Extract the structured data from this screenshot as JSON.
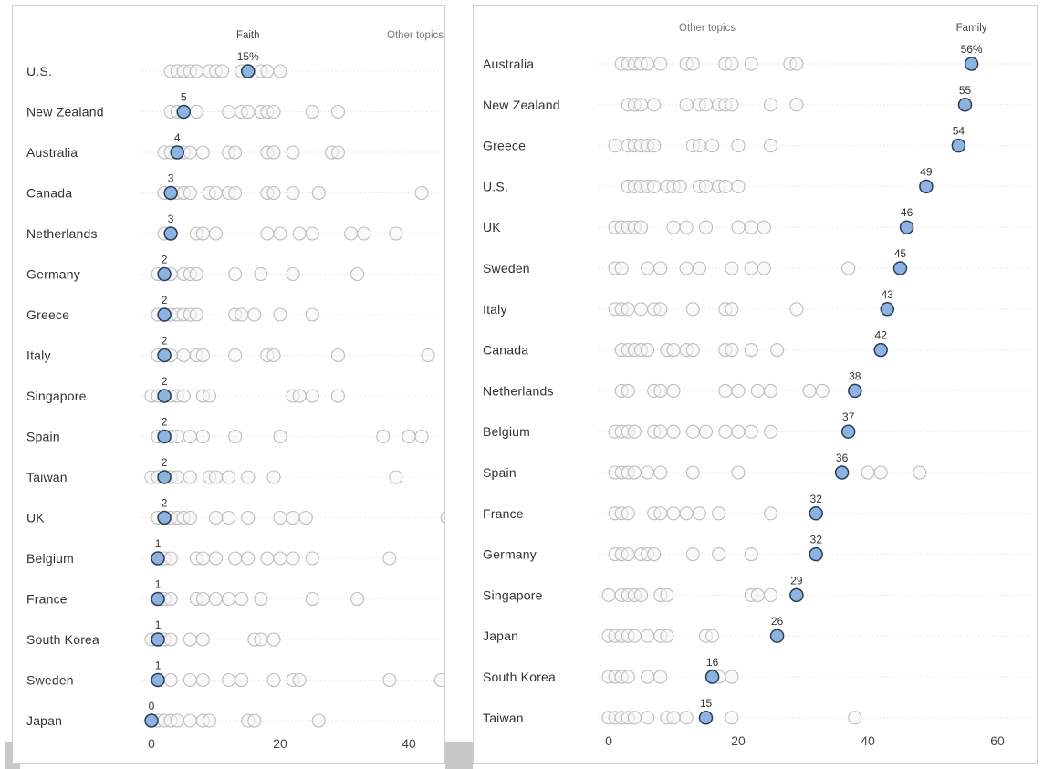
{
  "colors": {
    "highlight_fill": "#8db3e2",
    "highlight_stroke": "#2c3e55",
    "other_stroke": "#bdbdbd"
  },
  "chart_data": [
    {
      "type": "scatter",
      "title": "",
      "xlabel": "",
      "ylabel": "",
      "xlim": [
        0,
        45
      ],
      "x_ticks": [
        "0",
        "20",
        "40"
      ],
      "grid": false,
      "highlight_series": "Faith",
      "highlight_header": "Faith",
      "other_header": "Other topics",
      "rows": [
        {
          "country": "U.S.",
          "highlight": 15,
          "label": "15%",
          "others": [
            3,
            4,
            5,
            6,
            7,
            9,
            10,
            11,
            14,
            17,
            18,
            20
          ]
        },
        {
          "country": "New Zealand",
          "highlight": 5,
          "label": "5",
          "others": [
            3,
            4,
            7,
            12,
            14,
            15,
            17,
            18,
            19,
            25,
            29
          ]
        },
        {
          "country": "Australia",
          "highlight": 4,
          "label": "4",
          "others": [
            2,
            3,
            5,
            6,
            8,
            12,
            13,
            18,
            19,
            22,
            28,
            29
          ]
        },
        {
          "country": "Canada",
          "highlight": 3,
          "label": "3",
          "others": [
            2,
            4,
            5,
            6,
            9,
            10,
            12,
            13,
            18,
            19,
            22,
            26,
            42
          ]
        },
        {
          "country": "Netherlands",
          "highlight": 3,
          "label": "3",
          "others": [
            2,
            7,
            8,
            10,
            18,
            20,
            23,
            25,
            31,
            33,
            38
          ]
        },
        {
          "country": "Germany",
          "highlight": 2,
          "label": "2",
          "others": [
            1,
            3,
            5,
            6,
            7,
            13,
            17,
            22,
            32
          ]
        },
        {
          "country": "Greece",
          "highlight": 2,
          "label": "2",
          "others": [
            1,
            3,
            4,
            5,
            6,
            7,
            13,
            14,
            16,
            20,
            25
          ]
        },
        {
          "country": "Italy",
          "highlight": 2,
          "label": "2",
          "others": [
            1,
            3,
            5,
            7,
            8,
            13,
            18,
            19,
            29,
            43
          ]
        },
        {
          "country": "Singapore",
          "highlight": 2,
          "label": "2",
          "others": [
            0,
            1,
            3,
            4,
            5,
            8,
            9,
            22,
            23,
            25,
            29
          ]
        },
        {
          "country": "Spain",
          "highlight": 2,
          "label": "2",
          "others": [
            1,
            3,
            4,
            6,
            8,
            13,
            20,
            36,
            40,
            42
          ]
        },
        {
          "country": "Taiwan",
          "highlight": 2,
          "label": "2",
          "others": [
            0,
            1,
            3,
            4,
            6,
            9,
            10,
            12,
            15,
            19,
            38
          ]
        },
        {
          "country": "UK",
          "highlight": 2,
          "label": "2",
          "others": [
            1,
            3,
            4,
            5,
            6,
            10,
            12,
            15,
            20,
            22,
            24,
            46
          ]
        },
        {
          "country": "Belgium",
          "highlight": 1,
          "label": "1",
          "others": [
            2,
            3,
            7,
            8,
            10,
            13,
            15,
            18,
            20,
            22,
            25,
            37
          ]
        },
        {
          "country": "France",
          "highlight": 1,
          "label": "1",
          "others": [
            2,
            3,
            7,
            8,
            10,
            12,
            14,
            17,
            25,
            32
          ]
        },
        {
          "country": "South Korea",
          "highlight": 1,
          "label": "1",
          "others": [
            0,
            2,
            3,
            6,
            8,
            16,
            17,
            19
          ]
        },
        {
          "country": "Sweden",
          "highlight": 1,
          "label": "1",
          "others": [
            3,
            6,
            8,
            12,
            14,
            19,
            22,
            23,
            37,
            45
          ]
        },
        {
          "country": "Japan",
          "highlight": 0,
          "label": "0",
          "others": [
            1,
            2,
            3,
            4,
            6,
            8,
            9,
            15,
            16,
            26
          ]
        }
      ]
    },
    {
      "type": "scatter",
      "title": "",
      "xlabel": "",
      "ylabel": "",
      "xlim": [
        -1,
        64
      ],
      "x_ticks": [
        "0",
        "20",
        "40",
        "60"
      ],
      "grid": false,
      "highlight_series": "Family",
      "highlight_header": "Family",
      "other_header": "Other topics",
      "rows": [
        {
          "country": "Australia",
          "highlight": 56,
          "label": "56%",
          "others": [
            2,
            3,
            4,
            5,
            6,
            8,
            12,
            13,
            18,
            19,
            22,
            28,
            29
          ]
        },
        {
          "country": "New Zealand",
          "highlight": 55,
          "label": "55",
          "others": [
            3,
            4,
            5,
            7,
            12,
            14,
            15,
            17,
            18,
            19,
            25,
            29
          ]
        },
        {
          "country": "Greece",
          "highlight": 54,
          "label": "54",
          "others": [
            1,
            3,
            4,
            5,
            6,
            7,
            13,
            14,
            16,
            20,
            25
          ]
        },
        {
          "country": "U.S.",
          "highlight": 49,
          "label": "49",
          "others": [
            3,
            4,
            5,
            6,
            7,
            9,
            10,
            11,
            14,
            15,
            17,
            18,
            20
          ]
        },
        {
          "country": "UK",
          "highlight": 46,
          "label": "46",
          "others": [
            1,
            2,
            3,
            4,
            5,
            10,
            12,
            15,
            20,
            22,
            24
          ]
        },
        {
          "country": "Sweden",
          "highlight": 45,
          "label": "45",
          "others": [
            1,
            2,
            6,
            8,
            12,
            14,
            19,
            22,
            24,
            37
          ]
        },
        {
          "country": "Italy",
          "highlight": 43,
          "label": "43",
          "others": [
            1,
            2,
            3,
            5,
            7,
            8,
            13,
            18,
            19,
            29
          ]
        },
        {
          "country": "Canada",
          "highlight": 42,
          "label": "42",
          "others": [
            2,
            3,
            4,
            5,
            6,
            9,
            10,
            12,
            13,
            18,
            19,
            22,
            26
          ]
        },
        {
          "country": "Netherlands",
          "highlight": 38,
          "label": "38",
          "others": [
            2,
            3,
            7,
            8,
            10,
            18,
            20,
            23,
            25,
            31,
            33
          ]
        },
        {
          "country": "Belgium",
          "highlight": 37,
          "label": "37",
          "others": [
            1,
            2,
            3,
            4,
            7,
            8,
            10,
            13,
            15,
            18,
            20,
            22,
            25
          ]
        },
        {
          "country": "Spain",
          "highlight": 36,
          "label": "36",
          "others": [
            1,
            2,
            3,
            4,
            6,
            8,
            13,
            20,
            40,
            42,
            48
          ]
        },
        {
          "country": "France",
          "highlight": 32,
          "label": "32",
          "others": [
            1,
            2,
            3,
            7,
            8,
            10,
            12,
            14,
            17,
            25
          ]
        },
        {
          "country": "Germany",
          "highlight": 32,
          "label": "32",
          "others": [
            1,
            2,
            3,
            5,
            6,
            7,
            13,
            17,
            22
          ]
        },
        {
          "country": "Singapore",
          "highlight": 29,
          "label": "29",
          "others": [
            0,
            2,
            3,
            4,
            5,
            8,
            9,
            22,
            23,
            25
          ]
        },
        {
          "country": "Japan",
          "highlight": 26,
          "label": "26",
          "others": [
            0,
            1,
            2,
            3,
            4,
            6,
            8,
            9,
            15,
            16
          ]
        },
        {
          "country": "South Korea",
          "highlight": 16,
          "label": "16",
          "others": [
            0,
            1,
            2,
            3,
            6,
            8,
            17,
            19
          ]
        },
        {
          "country": "Taiwan",
          "highlight": 15,
          "label": "15",
          "others": [
            0,
            1,
            2,
            3,
            4,
            6,
            9,
            10,
            12,
            19,
            38
          ]
        }
      ]
    }
  ]
}
